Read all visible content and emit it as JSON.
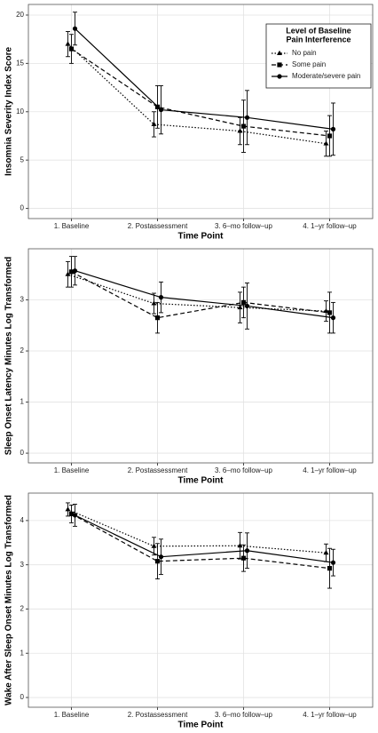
{
  "chart_data": [
    {
      "type": "line",
      "y_label": "Insomnia Severity Index Score",
      "x_label": "Time Point",
      "categories": [
        "1. Baseline",
        "2. Postassessment",
        "3. 6–mo follow–up",
        "4. 1–yr follow–up"
      ],
      "ylim": [
        -1.05,
        21.1
      ],
      "yticks": [
        0,
        5,
        10,
        15,
        20
      ],
      "grid": true,
      "legend_title": [
        "Level of Baseline",
        "Pain Interference"
      ],
      "legend": "top-right",
      "series": [
        {
          "name": "No pain",
          "color": "#000000",
          "dash": "dotted",
          "marker": "triangle",
          "values": [
            17.0,
            8.7,
            8.0,
            6.7
          ],
          "errors": [
            1.3,
            1.3,
            1.4,
            1.3
          ]
        },
        {
          "name": "Some pain",
          "color": "#000000",
          "dash": "dashed",
          "marker": "square",
          "values": [
            16.5,
            10.5,
            8.5,
            7.5
          ],
          "errors": [
            1.5,
            2.2,
            2.7,
            2.1
          ]
        },
        {
          "name": "Moderate/severe pain",
          "color": "#000000",
          "dash": "solid",
          "marker": "circle",
          "values": [
            18.6,
            10.2,
            9.4,
            8.2
          ],
          "errors": [
            1.7,
            2.5,
            2.8,
            2.7
          ]
        }
      ]
    },
    {
      "type": "line",
      "y_label": "Sleep Onset Latency Minutes Log Transformed",
      "x_label": "Time Point",
      "categories": [
        "1. Baseline",
        "2. Postassessment",
        "3. 6–mo follow–up",
        "4. 1–yr follow–up"
      ],
      "ylim": [
        -0.19,
        4.0
      ],
      "yticks": [
        0,
        1,
        2,
        3
      ],
      "grid": true,
      "series": [
        {
          "name": "No pain",
          "color": "#000000",
          "dash": "dotted",
          "marker": "triangle",
          "values": [
            3.5,
            2.93,
            2.85,
            2.78
          ],
          "errors": [
            0.25,
            0.2,
            0.3,
            0.2
          ]
        },
        {
          "name": "Some pain",
          "color": "#000000",
          "dash": "dashed",
          "marker": "square",
          "values": [
            3.55,
            2.65,
            2.95,
            2.75
          ],
          "errors": [
            0.3,
            0.3,
            0.3,
            0.4
          ]
        },
        {
          "name": "Moderate/severe pain",
          "color": "#000000",
          "dash": "solid",
          "marker": "circle",
          "values": [
            3.57,
            3.05,
            2.88,
            2.65
          ],
          "errors": [
            0.28,
            0.3,
            0.45,
            0.3
          ]
        }
      ]
    },
    {
      "type": "line",
      "y_label": "Wake After Sleep Onset Minutes Log Transformed",
      "x_label": "Time Point",
      "categories": [
        "1. Baseline",
        "2. Postassessment",
        "3. 6–mo follow–up",
        "4. 1–yr follow–up"
      ],
      "ylim": [
        -0.22,
        4.62
      ],
      "yticks": [
        0,
        1,
        2,
        3,
        4
      ],
      "grid": true,
      "series": [
        {
          "name": "No pain",
          "color": "#000000",
          "dash": "dotted",
          "marker": "triangle",
          "values": [
            4.25,
            3.42,
            3.43,
            3.27
          ],
          "errors": [
            0.15,
            0.2,
            0.3,
            0.2
          ]
        },
        {
          "name": "Some pain",
          "color": "#000000",
          "dash": "dashed",
          "marker": "square",
          "values": [
            4.15,
            3.08,
            3.15,
            2.92
          ],
          "errors": [
            0.2,
            0.4,
            0.3,
            0.45
          ]
        },
        {
          "name": "Moderate/severe pain",
          "color": "#000000",
          "dash": "solid",
          "marker": "circle",
          "values": [
            4.12,
            3.18,
            3.32,
            3.05
          ],
          "errors": [
            0.25,
            0.4,
            0.4,
            0.3
          ]
        }
      ]
    }
  ]
}
